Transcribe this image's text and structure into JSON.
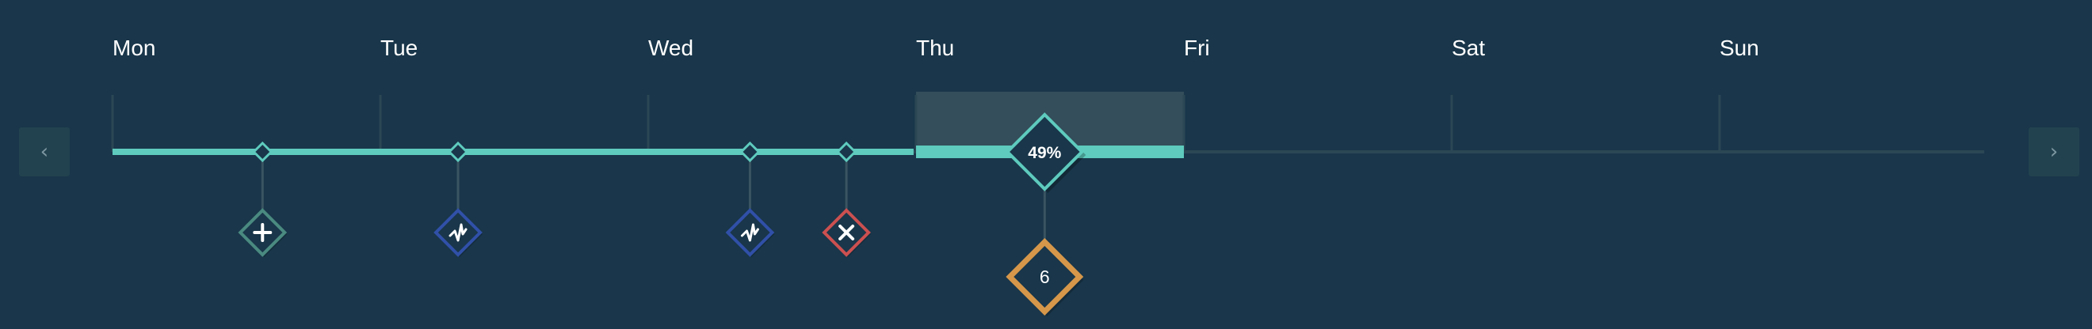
{
  "timeline": {
    "days": [
      "Mon",
      "Tue",
      "Wed",
      "Thu",
      "Fri",
      "Sat",
      "Sun"
    ],
    "progress_fraction": 0.428,
    "current_day_index": 3,
    "current_day_progress": {
      "label": "49%",
      "value": 0.49
    },
    "count_marker": {
      "label": "6"
    },
    "events": [
      {
        "day_position": 0.56,
        "icon": "plus-icon",
        "color": "#4a8a80"
      },
      {
        "day_position": 1.29,
        "icon": "activity-icon",
        "color": "#3050a8"
      },
      {
        "day_position": 2.38,
        "icon": "activity-icon",
        "color": "#3050a8"
      },
      {
        "day_position": 2.74,
        "icon": "x-icon",
        "color": "#cc5050"
      }
    ],
    "colors": {
      "background": "#19364a",
      "track": "#2b4755",
      "progress": "#5ecbbe",
      "current_day_highlight": "#344e5b",
      "count_marker": "#d6974a",
      "tick": "#2b4755"
    }
  },
  "nav": {
    "prev_icon": "chevron-left-icon",
    "next_icon": "chevron-right-icon",
    "prev_glyph": "‹",
    "next_glyph": "›"
  }
}
